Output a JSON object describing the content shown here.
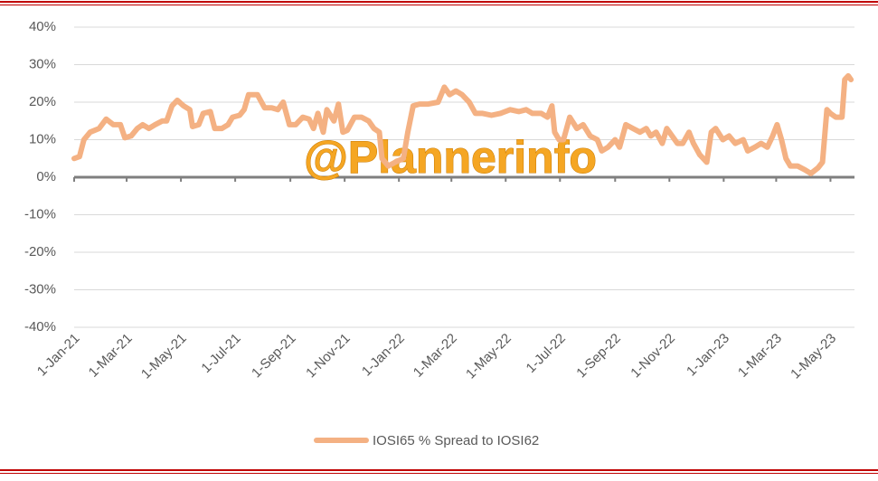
{
  "chart_data": {
    "type": "line",
    "annotation": "@Plannerinfo",
    "x": [
      "2021-01-01",
      "2021-01-07",
      "2021-01-12",
      "2021-01-19",
      "2021-01-29",
      "2021-02-06",
      "2021-02-14",
      "2021-02-22",
      "2021-02-27",
      "2021-03-06",
      "2021-03-13",
      "2021-03-19",
      "2021-03-26",
      "2021-04-02",
      "2021-04-10",
      "2021-04-15",
      "2021-04-21",
      "2021-04-27",
      "2021-05-04",
      "2021-05-11",
      "2021-05-14",
      "2021-05-21",
      "2021-05-26",
      "2021-06-03",
      "2021-06-08",
      "2021-06-16",
      "2021-06-23",
      "2021-06-28",
      "2021-07-06",
      "2021-07-11",
      "2021-07-16",
      "2021-07-26",
      "2021-08-03",
      "2021-08-11",
      "2021-08-18",
      "2021-08-24",
      "2021-08-31",
      "2021-09-07",
      "2021-09-15",
      "2021-09-22",
      "2021-09-27",
      "2021-10-02",
      "2021-10-08",
      "2021-10-12",
      "2021-10-20",
      "2021-10-25",
      "2021-10-30",
      "2021-11-04",
      "2021-11-12",
      "2021-11-20",
      "2021-11-28",
      "2021-12-04",
      "2021-12-10",
      "2021-12-13",
      "2021-12-20",
      "2021-12-28",
      "2022-01-06",
      "2022-01-11",
      "2022-01-17",
      "2022-01-24",
      "2022-02-03",
      "2022-02-14",
      "2022-02-21",
      "2022-02-27",
      "2022-03-06",
      "2022-03-13",
      "2022-03-21",
      "2022-03-28",
      "2022-04-05",
      "2022-04-15",
      "2022-04-25",
      "2022-05-06",
      "2022-05-16",
      "2022-05-24",
      "2022-05-31",
      "2022-06-10",
      "2022-06-17",
      "2022-06-22",
      "2022-06-25",
      "2022-06-30",
      "2022-07-05",
      "2022-07-12",
      "2022-07-20",
      "2022-07-27",
      "2022-08-04",
      "2022-08-12",
      "2022-08-17",
      "2022-08-24",
      "2022-09-01",
      "2022-09-06",
      "2022-09-13",
      "2022-09-21",
      "2022-09-29",
      "2022-10-06",
      "2022-10-11",
      "2022-10-17",
      "2022-10-24",
      "2022-10-29",
      "2022-11-04",
      "2022-11-10",
      "2022-11-16",
      "2022-11-23",
      "2022-11-28",
      "2022-12-05",
      "2022-12-13",
      "2022-12-18",
      "2022-12-23",
      "2022-12-31",
      "2023-01-07",
      "2023-01-14",
      "2023-01-23",
      "2023-01-28",
      "2023-02-05",
      "2023-02-12",
      "2023-02-19",
      "2023-02-25",
      "2023-03-02",
      "2023-03-07",
      "2023-03-12",
      "2023-03-17",
      "2023-03-25",
      "2023-04-02",
      "2023-04-09",
      "2023-04-17",
      "2023-04-22",
      "2023-04-27",
      "2023-05-01",
      "2023-05-07",
      "2023-05-14",
      "2023-05-17",
      "2023-05-21",
      "2023-05-24"
    ],
    "series": [
      {
        "name": "IOSI65 % Spread to IOSI62",
        "color": "#f4b183",
        "values": [
          5,
          5.5,
          10,
          12,
          13,
          15.5,
          14,
          14,
          10.5,
          11,
          13,
          14,
          13,
          14,
          15,
          15,
          19,
          20.5,
          19,
          18,
          13.5,
          14,
          17,
          17.5,
          13,
          13,
          14,
          16,
          16.5,
          18,
          22,
          22,
          18.5,
          18.5,
          18,
          20,
          14,
          14,
          16,
          15.5,
          13,
          17,
          12,
          18,
          15,
          19.5,
          12,
          12.5,
          16,
          16,
          15,
          13,
          12,
          5,
          3,
          4,
          5,
          12,
          19,
          19.5,
          19.5,
          20,
          24,
          22,
          23,
          22,
          20,
          17,
          17,
          16.5,
          17,
          18,
          17.5,
          18,
          17,
          17,
          16,
          19,
          12,
          10,
          10,
          16,
          13,
          14,
          11,
          10,
          7,
          8,
          10,
          8,
          14,
          13,
          12,
          13,
          11,
          12,
          9,
          13,
          11,
          9,
          9,
          12,
          9,
          6,
          4,
          12,
          13,
          10,
          11,
          9,
          10,
          7,
          8,
          9,
          8,
          11,
          14,
          10,
          5,
          3,
          3,
          2,
          1,
          2.5,
          4,
          18,
          17,
          16,
          16,
          26,
          27,
          26
        ]
      }
    ],
    "xlim": [
      "2021-01-01",
      "2023-05-28"
    ],
    "xticks": [
      {
        "value": "2021-01-01",
        "label": "1-Jan-21"
      },
      {
        "value": "2021-03-01",
        "label": "1-Mar-21"
      },
      {
        "value": "2021-05-01",
        "label": "1-May-21"
      },
      {
        "value": "2021-07-01",
        "label": "1-Jul-21"
      },
      {
        "value": "2021-09-01",
        "label": "1-Sep-21"
      },
      {
        "value": "2021-11-01",
        "label": "1-Nov-21"
      },
      {
        "value": "2022-01-01",
        "label": "1-Jan-22"
      },
      {
        "value": "2022-03-01",
        "label": "1-Mar-22"
      },
      {
        "value": "2022-05-01",
        "label": "1-May-22"
      },
      {
        "value": "2022-07-01",
        "label": "1-Jul-22"
      },
      {
        "value": "2022-09-01",
        "label": "1-Sep-22"
      },
      {
        "value": "2022-11-01",
        "label": "1-Nov-22"
      },
      {
        "value": "2023-01-01",
        "label": "1-Jan-23"
      },
      {
        "value": "2023-03-01",
        "label": "1-Mar-23"
      },
      {
        "value": "2023-05-01",
        "label": "1-May-23"
      }
    ],
    "ylim": [
      -40,
      40
    ],
    "yticks": [
      {
        "value": -40,
        "label": "-40%"
      },
      {
        "value": -30,
        "label": "-30%"
      },
      {
        "value": -20,
        "label": "-20%"
      },
      {
        "value": -10,
        "label": "-10%"
      },
      {
        "value": 0,
        "label": "0%"
      },
      {
        "value": 10,
        "label": "10%"
      },
      {
        "value": 20,
        "label": "20%"
      },
      {
        "value": 30,
        "label": "30%"
      },
      {
        "value": 40,
        "label": "40%"
      }
    ],
    "grid": true,
    "legend": "bottom"
  }
}
